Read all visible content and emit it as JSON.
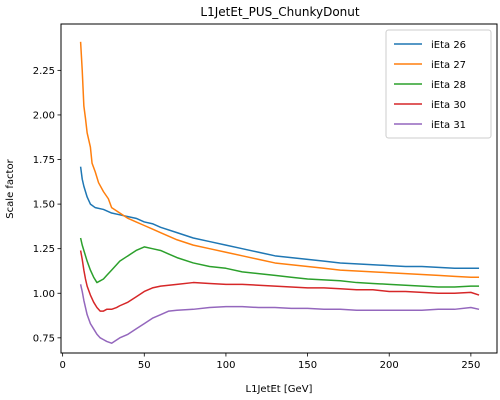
{
  "chart_data": {
    "type": "line",
    "title": "L1JetEt_PUS_ChunkyDonut",
    "xlabel": "L1JetEt [GeV]",
    "ylabel": "Scale factor",
    "xlim": [
      -1,
      266
    ],
    "ylim": [
      0.665,
      2.51
    ],
    "xticks": [
      0,
      50,
      100,
      150,
      200,
      250
    ],
    "yticks": [
      0.75,
      1.0,
      1.25,
      1.5,
      1.75,
      2.0,
      2.25
    ],
    "ytick_labels": [
      "0.75",
      "1.00",
      "1.25",
      "1.50",
      "1.75",
      "2.00",
      "2.25"
    ],
    "legend_position": "upper right",
    "grid": false,
    "series": [
      {
        "name": "iEta 26",
        "color": "#1f77b4",
        "x": [
          11,
          12,
          13,
          15,
          17,
          20,
          25,
          30,
          35,
          40,
          45,
          50,
          55,
          60,
          70,
          80,
          90,
          100,
          110,
          120,
          130,
          140,
          150,
          160,
          170,
          180,
          190,
          200,
          210,
          220,
          230,
          240,
          250,
          255
        ],
        "y": [
          1.71,
          1.64,
          1.6,
          1.54,
          1.5,
          1.48,
          1.47,
          1.45,
          1.44,
          1.43,
          1.42,
          1.4,
          1.39,
          1.37,
          1.34,
          1.31,
          1.29,
          1.27,
          1.25,
          1.23,
          1.21,
          1.2,
          1.19,
          1.18,
          1.17,
          1.165,
          1.16,
          1.155,
          1.15,
          1.15,
          1.145,
          1.14,
          1.14,
          1.14
        ]
      },
      {
        "name": "iEta 27",
        "color": "#ff7f0e",
        "x": [
          11,
          12,
          13,
          14,
          15,
          16,
          17,
          18,
          20,
          22,
          25,
          28,
          30,
          35,
          40,
          45,
          50,
          55,
          60,
          70,
          80,
          90,
          100,
          110,
          120,
          130,
          140,
          150,
          160,
          170,
          180,
          190,
          200,
          210,
          220,
          230,
          240,
          250,
          255
        ],
        "y": [
          2.41,
          2.25,
          2.05,
          1.98,
          1.9,
          1.86,
          1.82,
          1.73,
          1.68,
          1.62,
          1.57,
          1.53,
          1.48,
          1.45,
          1.42,
          1.4,
          1.38,
          1.36,
          1.34,
          1.3,
          1.27,
          1.25,
          1.23,
          1.21,
          1.19,
          1.17,
          1.16,
          1.15,
          1.14,
          1.13,
          1.125,
          1.12,
          1.115,
          1.11,
          1.105,
          1.1,
          1.095,
          1.09,
          1.09
        ]
      },
      {
        "name": "iEta 28",
        "color": "#2ca02c",
        "x": [
          11,
          12,
          13,
          14,
          15,
          17,
          19,
          21,
          23,
          25,
          27,
          30,
          33,
          35,
          40,
          45,
          50,
          55,
          60,
          65,
          70,
          80,
          90,
          100,
          110,
          120,
          130,
          140,
          150,
          160,
          170,
          180,
          190,
          200,
          210,
          220,
          230,
          240,
          250,
          255
        ],
        "y": [
          1.31,
          1.27,
          1.24,
          1.21,
          1.18,
          1.13,
          1.09,
          1.06,
          1.07,
          1.08,
          1.1,
          1.13,
          1.16,
          1.18,
          1.21,
          1.24,
          1.26,
          1.25,
          1.24,
          1.22,
          1.2,
          1.17,
          1.15,
          1.14,
          1.12,
          1.11,
          1.1,
          1.09,
          1.08,
          1.075,
          1.07,
          1.06,
          1.055,
          1.05,
          1.045,
          1.04,
          1.035,
          1.035,
          1.04,
          1.04
        ]
      },
      {
        "name": "iEta 30",
        "color": "#d62728",
        "x": [
          11,
          12,
          13,
          14,
          15,
          17,
          19,
          21,
          23,
          25,
          27,
          30,
          33,
          35,
          40,
          45,
          50,
          55,
          60,
          70,
          80,
          90,
          100,
          110,
          120,
          130,
          140,
          150,
          160,
          170,
          180,
          190,
          200,
          210,
          220,
          230,
          240,
          250,
          255
        ],
        "y": [
          1.24,
          1.19,
          1.13,
          1.08,
          1.04,
          0.99,
          0.95,
          0.92,
          0.9,
          0.9,
          0.91,
          0.91,
          0.92,
          0.93,
          0.95,
          0.98,
          1.01,
          1.03,
          1.04,
          1.05,
          1.06,
          1.055,
          1.05,
          1.05,
          1.045,
          1.04,
          1.035,
          1.03,
          1.03,
          1.025,
          1.02,
          1.02,
          1.01,
          1.01,
          1.005,
          1.0,
          1.0,
          1.005,
          0.99
        ]
      },
      {
        "name": "iEta 31",
        "color": "#9467bd",
        "x": [
          11,
          12,
          13,
          14,
          15,
          17,
          19,
          21,
          23,
          25,
          27,
          30,
          35,
          40,
          45,
          50,
          55,
          60,
          65,
          70,
          80,
          90,
          100,
          110,
          120,
          130,
          140,
          150,
          160,
          170,
          180,
          190,
          200,
          210,
          220,
          230,
          240,
          250,
          255
        ],
        "y": [
          1.05,
          1.01,
          0.96,
          0.92,
          0.88,
          0.83,
          0.8,
          0.77,
          0.75,
          0.74,
          0.73,
          0.72,
          0.75,
          0.77,
          0.8,
          0.83,
          0.86,
          0.88,
          0.9,
          0.905,
          0.91,
          0.92,
          0.925,
          0.925,
          0.92,
          0.92,
          0.915,
          0.915,
          0.91,
          0.91,
          0.905,
          0.905,
          0.905,
          0.905,
          0.905,
          0.91,
          0.91,
          0.92,
          0.91
        ]
      }
    ]
  }
}
